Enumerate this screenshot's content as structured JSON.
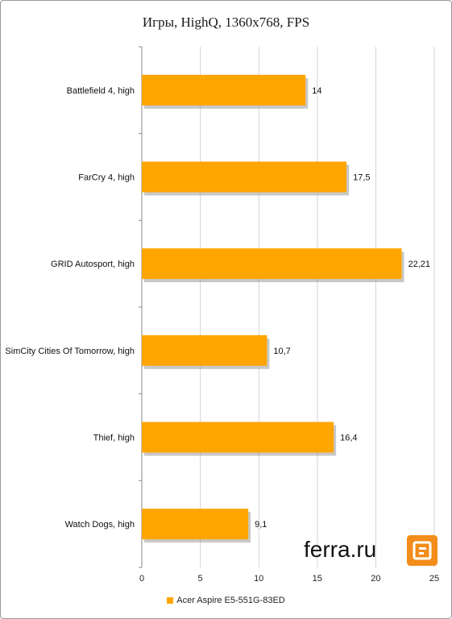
{
  "chart_data": {
    "type": "bar",
    "orientation": "horizontal",
    "title": "Игры, HighQ, 1360x768, FPS",
    "xlabel": "",
    "ylabel": "",
    "categories": [
      "Battlefield 4, high",
      "FarCry 4, high",
      "GRID Autosport, high",
      "SimCity Cities Of Tomorrow, high",
      "Thief, high",
      "Watch Dogs, high"
    ],
    "series": [
      {
        "name": "Acer Aspire E5-551G-83ED",
        "values": [
          14,
          17.5,
          22.21,
          10.7,
          16.4,
          9.1
        ],
        "value_labels": [
          "14",
          "17,5",
          "22,21",
          "10,7",
          "16,4",
          "9,1"
        ]
      }
    ],
    "xlim": [
      0,
      25
    ],
    "x_ticks": [
      "0",
      "5",
      "10",
      "15",
      "20",
      "25"
    ],
    "grid": true,
    "legend_position": "bottom"
  },
  "colors": {
    "bar": "#ffa500",
    "bar_shadow": "#9b9b9b",
    "grid": "#d4d4d4",
    "logo": "#f28c1a"
  },
  "watermark": {
    "text": "ferra.ru"
  },
  "logo": {
    "icon": "ferra-logo-icon"
  }
}
